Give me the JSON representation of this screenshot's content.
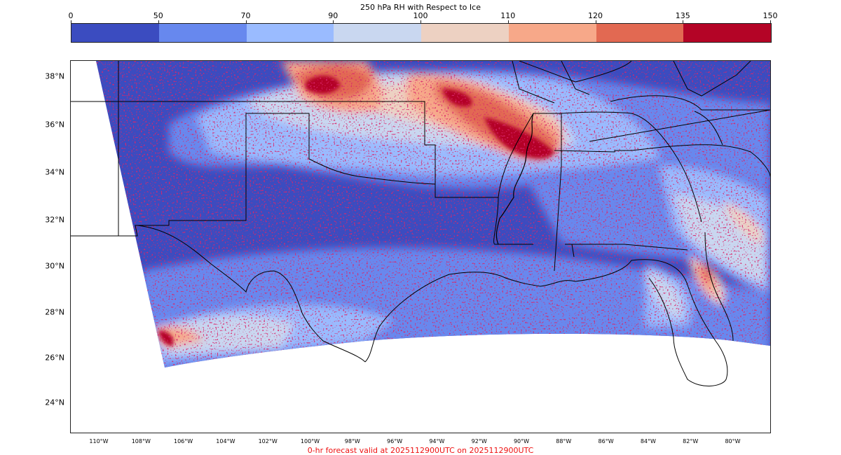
{
  "title": "250 hPa RH with Respect to Ice",
  "colorbar": {
    "ticks": [
      "0",
      "50",
      "70",
      "90",
      "100",
      "110",
      "120",
      "135",
      "150"
    ],
    "colors": [
      "#3b4cc0",
      "#6788ee",
      "#9abbff",
      "#c9d7f0",
      "#edd1c2",
      "#f7a889",
      "#e26952",
      "#b40426"
    ]
  },
  "latitude_labels": [
    "38°N",
    "36°N",
    "34°N",
    "32°N",
    "30°N",
    "28°N",
    "26°N",
    "24°N"
  ],
  "longitude_labels": [
    "110°W",
    "108°W",
    "106°W",
    "104°W",
    "102°W",
    "100°W",
    "98°W",
    "96°W",
    "94°W",
    "92°W",
    "90°W",
    "88°W",
    "86°W",
    "84°W",
    "82°W",
    "80°W"
  ],
  "footer": "0-hr forecast valid at 2025112900UTC on 2025112900UTC"
}
